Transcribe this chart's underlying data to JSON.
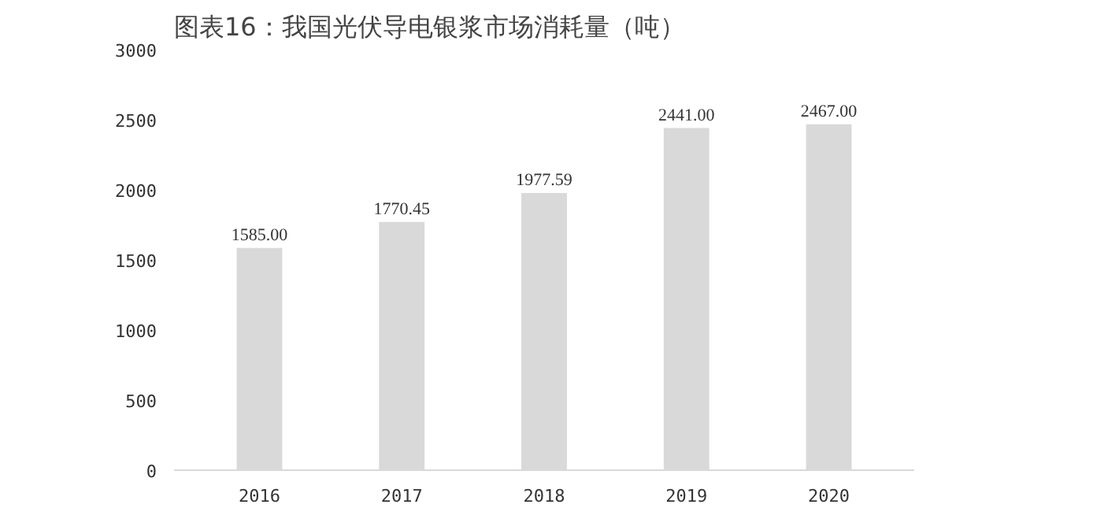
{
  "chart_data": {
    "type": "bar",
    "title": "图表16：我国光伏导电银浆市场消耗量（吨）",
    "categories": [
      "2016",
      "2017",
      "2018",
      "2019",
      "2020"
    ],
    "values": [
      1585.0,
      1770.45,
      1977.59,
      2441.0,
      2467.0
    ],
    "value_labels": [
      "1585.00",
      "1770.45",
      "1977.59",
      "2441.00",
      "2467.00"
    ],
    "color": "#d9d9d9",
    "ylim": [
      0,
      3000
    ],
    "yticks": [
      0,
      500,
      1000,
      1500,
      2000,
      2500,
      3000
    ],
    "grid": false
  }
}
